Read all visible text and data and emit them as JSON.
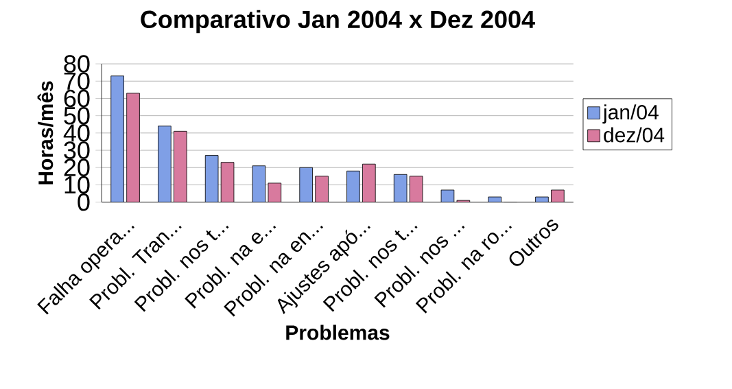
{
  "chart_data": {
    "type": "bar",
    "title": "Comparativo Jan 2004 x Dez 2004",
    "xlabel": "Problemas",
    "ylabel": "Horas/mês",
    "categories": [
      "Falha opera...",
      "Probl. Tran...",
      "Probl. nos t...",
      "Probl. na e...",
      "Probl. na en...",
      "Ajustes apó...",
      "Probl. nos t...",
      "Probl. nos ...",
      "Probl. na ro...",
      "Outros"
    ],
    "series": [
      {
        "name": "jan/04",
        "color": "#7f9fe6",
        "values": [
          73,
          44,
          27,
          21,
          20,
          18,
          16,
          7,
          3,
          3
        ]
      },
      {
        "name": "dez/04",
        "color": "#d87a9e",
        "values": [
          63,
          41,
          23,
          11,
          15,
          22,
          15,
          1,
          0,
          7
        ]
      }
    ],
    "ylim": [
      0,
      80
    ],
    "yticks": [
      0,
      10,
      20,
      30,
      40,
      50,
      60,
      70,
      80
    ],
    "grid": "y",
    "legend": "right"
  }
}
